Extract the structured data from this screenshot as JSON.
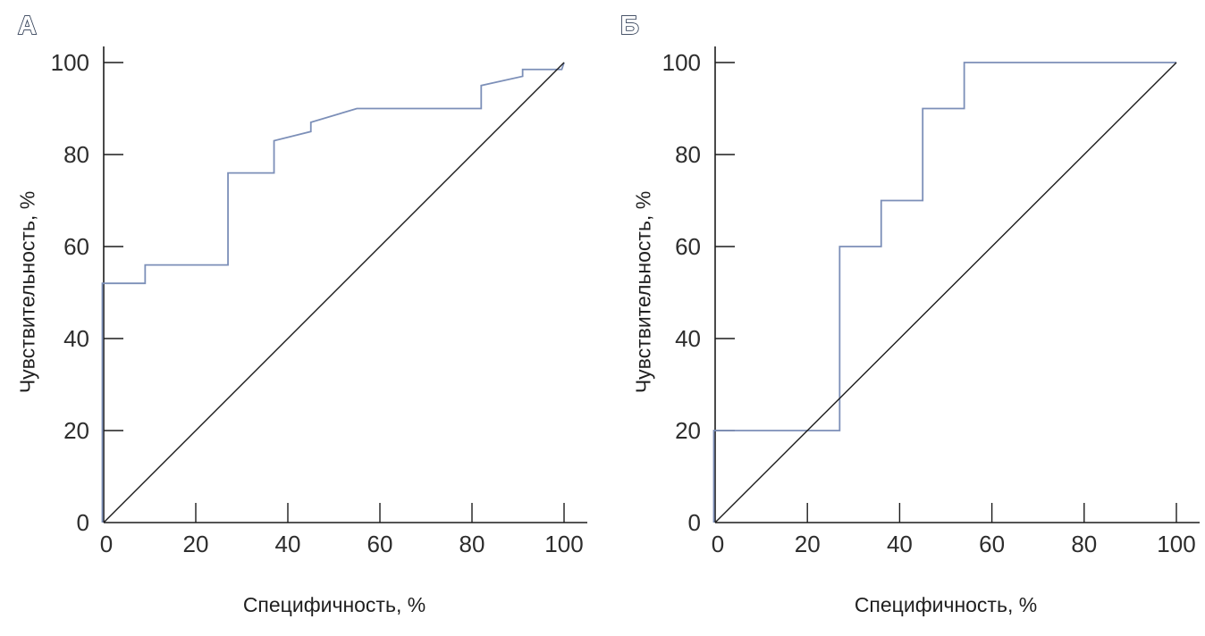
{
  "figure": {
    "background": "#ffffff"
  },
  "colors": {
    "axis": "#1c1c1c",
    "tick_text": "#2d2d2d",
    "label_text": "#1f1f1f",
    "roc_curve": "#7c8fb8",
    "reference_line": "#1c1c1c",
    "panel_label_fill": "#ffffff",
    "panel_label_outline": "#2e3c54"
  },
  "chart_data": [
    {
      "type": "line",
      "panel_label": "А",
      "xlabel": "Специфичность, %",
      "ylabel": "Чувствительность, %",
      "xlim": [
        0,
        100
      ],
      "ylim": [
        0,
        100
      ],
      "xticks": [
        0,
        20,
        40,
        60,
        80,
        100
      ],
      "yticks": [
        0,
        20,
        40,
        60,
        80,
        100
      ],
      "grid": false,
      "legend": false,
      "series": [
        {
          "role": "roc",
          "color": "#7c8fb8",
          "points": [
            [
              0,
              0
            ],
            [
              0,
              52
            ],
            [
              9,
              52
            ],
            [
              9,
              56
            ],
            [
              27,
              56
            ],
            [
              27,
              76
            ],
            [
              37,
              76
            ],
            [
              37,
              83
            ],
            [
              45,
              85
            ],
            [
              45,
              87
            ],
            [
              55,
              90
            ],
            [
              82,
              90
            ],
            [
              82,
              95
            ],
            [
              91,
              97
            ],
            [
              91,
              98.5
            ],
            [
              99.5,
              98.5
            ],
            [
              100,
              100
            ]
          ]
        },
        {
          "role": "reference",
          "color": "#1c1c1c",
          "points": [
            [
              0,
              0
            ],
            [
              100,
              100
            ]
          ]
        }
      ]
    },
    {
      "type": "line",
      "panel_label": "Б",
      "xlabel": "Специфичность, %",
      "ylabel": "Чувствительность, %",
      "xlim": [
        0,
        100
      ],
      "ylim": [
        0,
        100
      ],
      "xticks": [
        0,
        20,
        40,
        60,
        80,
        100
      ],
      "yticks": [
        0,
        20,
        40,
        60,
        80,
        100
      ],
      "grid": false,
      "legend": false,
      "series": [
        {
          "role": "roc",
          "color": "#7c8fb8",
          "points": [
            [
              0,
              0
            ],
            [
              0,
              20
            ],
            [
              27,
              20
            ],
            [
              27,
              60
            ],
            [
              36,
              60
            ],
            [
              36,
              70
            ],
            [
              45,
              70
            ],
            [
              45,
              90
            ],
            [
              54,
              90
            ],
            [
              54,
              100
            ],
            [
              100,
              100
            ]
          ]
        },
        {
          "role": "reference",
          "color": "#1c1c1c",
          "points": [
            [
              0,
              0
            ],
            [
              100,
              100
            ]
          ]
        }
      ]
    }
  ]
}
